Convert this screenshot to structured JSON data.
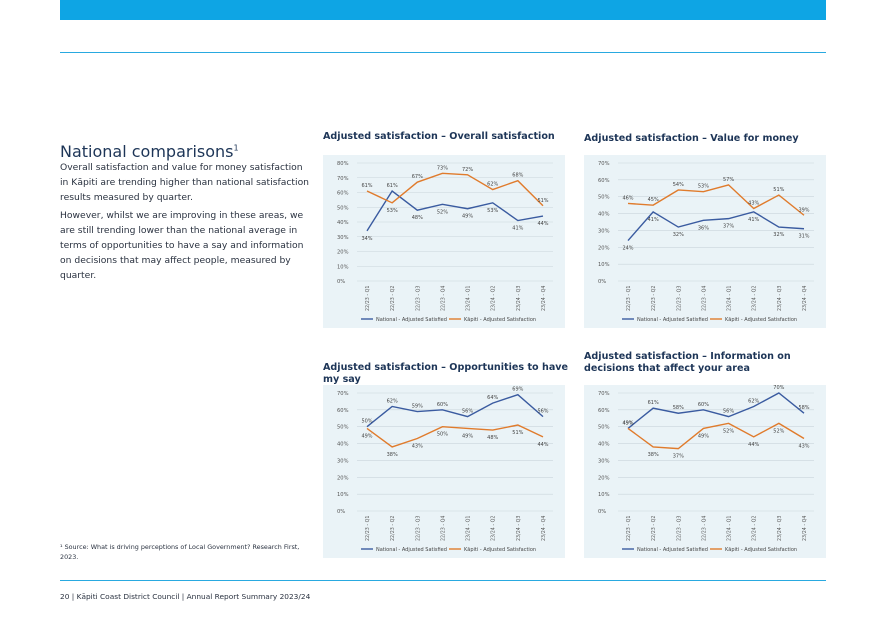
{
  "page": {
    "section_title": "National comparisons",
    "footnote_marker": "1",
    "paragraphs": [
      "Overall satisfaction and value for money satisfaction in Kāpiti are trending higher than national satisfaction results measured by quarter.",
      "However, whilst we are improving in these areas, we are still trending lower than the national average in terms of opportunities to have a say and information on decisions that may affect people, measured by quarter."
    ],
    "footnote": "¹ Source: What is driving perceptions of Local Government? Research First, 2023.",
    "footer": "20 | Kāpiti Coast District Council | Annual Report Summary 2023/24"
  },
  "colors": {
    "accent": "#0ea5e4",
    "national": "#3a5ba0",
    "kapiti": "#e07b2c",
    "chart_bg": "#eaf3f7",
    "heading": "#1d3557"
  },
  "chart_data": [
    {
      "type": "line",
      "title": "Adjusted satisfaction – Overall satisfaction",
      "categories": [
        "22/23 - Q1",
        "22/23 - Q2",
        "22/23 - Q3",
        "22/23 - Q4",
        "23/24 - Q1",
        "23/24 - Q2",
        "23/24 - Q3",
        "23/24 - Q4"
      ],
      "ylim": [
        0,
        80
      ],
      "yticks": [
        "0%",
        "10%",
        "20%",
        "30%",
        "40%",
        "50%",
        "60%",
        "70%",
        "80%"
      ],
      "series": [
        {
          "name": "National - Adjusted Satisfied",
          "values": [
            34,
            61,
            48,
            52,
            49,
            53,
            41,
            44
          ],
          "labels": [
            "34%",
            "61%",
            "48%",
            "52%",
            "49%",
            "53%",
            "41%",
            "44%"
          ]
        },
        {
          "name": "Kāpiti - Adjusted Satisfaction",
          "values": [
            61,
            53,
            67,
            73,
            72,
            62,
            68,
            51
          ],
          "labels": [
            "61%",
            "53%",
            "67%",
            "73%",
            "72%",
            "62%",
            "68%",
            "51%"
          ]
        }
      ],
      "grid": true,
      "legend": "bottom"
    },
    {
      "type": "line",
      "title": "Adjusted satisfaction – Value for money",
      "categories": [
        "22/23 - Q1",
        "22/23 - Q2",
        "22/23 - Q3",
        "22/23 - Q4",
        "23/24 - Q1",
        "23/24 - Q2",
        "23/24 - Q3",
        "23/24 - Q4"
      ],
      "ylim": [
        0,
        70
      ],
      "yticks": [
        "0%",
        "10%",
        "20%",
        "30%",
        "40%",
        "50%",
        "60%",
        "70%"
      ],
      "series": [
        {
          "name": "National - Adjusted Satisfied",
          "values": [
            24,
            41,
            32,
            36,
            37,
            41,
            32,
            31
          ],
          "labels": [
            "24%",
            "41%",
            "32%",
            "36%",
            "37%",
            "41%",
            "32%",
            "31%"
          ]
        },
        {
          "name": "Kāpiti - Adjusted Satisfaction",
          "values": [
            46,
            45,
            54,
            53,
            57,
            43,
            51,
            39
          ],
          "labels": [
            "46%",
            "45%",
            "54%",
            "53%",
            "57%",
            "43%",
            "51%",
            "39%"
          ]
        }
      ],
      "grid": true,
      "legend": "bottom"
    },
    {
      "type": "line",
      "title": "Adjusted satisfaction – Opportunities to have my say",
      "categories": [
        "22/23 - Q1",
        "22/23 - Q2",
        "22/23 - Q3",
        "22/23 - Q4",
        "23/24 - Q1",
        "23/24 - Q2",
        "23/24 - Q3",
        "23/24 - Q4"
      ],
      "ylim": [
        0,
        70
      ],
      "yticks": [
        "0%",
        "10%",
        "20%",
        "30%",
        "40%",
        "50%",
        "60%",
        "70%"
      ],
      "series": [
        {
          "name": "National - Adjusted Satisfied",
          "values": [
            50,
            62,
            59,
            60,
            56,
            64,
            69,
            56
          ],
          "labels": [
            "50%",
            "62%",
            "59%",
            "60%",
            "56%",
            "64%",
            "69%",
            "56%"
          ]
        },
        {
          "name": "Kāpiti - Adjusted Satisfaction",
          "values": [
            49,
            38,
            43,
            50,
            49,
            48,
            51,
            44
          ],
          "labels": [
            "49%",
            "38%",
            "43%",
            "50%",
            "49%",
            "48%",
            "51%",
            "44%"
          ]
        }
      ],
      "grid": true,
      "legend": "bottom"
    },
    {
      "type": "line",
      "title": "Adjusted satisfaction – Information on decisions that affect your area",
      "categories": [
        "22/23 - Q1",
        "22/23 - Q2",
        "22/23 - Q3",
        "22/23 - Q4",
        "23/24 - Q1",
        "23/24 - Q2",
        "23/24 - Q3",
        "23/24 - Q4"
      ],
      "ylim": [
        0,
        70
      ],
      "yticks": [
        "0%",
        "10%",
        "20%",
        "30%",
        "40%",
        "50%",
        "60%",
        "70%"
      ],
      "series": [
        {
          "name": "National - Adjusted Satisfied",
          "values": [
            49,
            61,
            58,
            60,
            56,
            62,
            70,
            58
          ],
          "labels": [
            "49%",
            "61%",
            "58%",
            "60%",
            "56%",
            "62%",
            "70%",
            "58%"
          ]
        },
        {
          "name": "Kāpiti - Adjusted Satisfaction",
          "values": [
            49,
            38,
            37,
            49,
            52,
            44,
            52,
            43
          ],
          "labels": [
            "49%",
            "38%",
            "37%",
            "49%",
            "52%",
            "44%",
            "52%",
            "43%"
          ]
        }
      ],
      "grid": true,
      "legend": "bottom"
    }
  ]
}
